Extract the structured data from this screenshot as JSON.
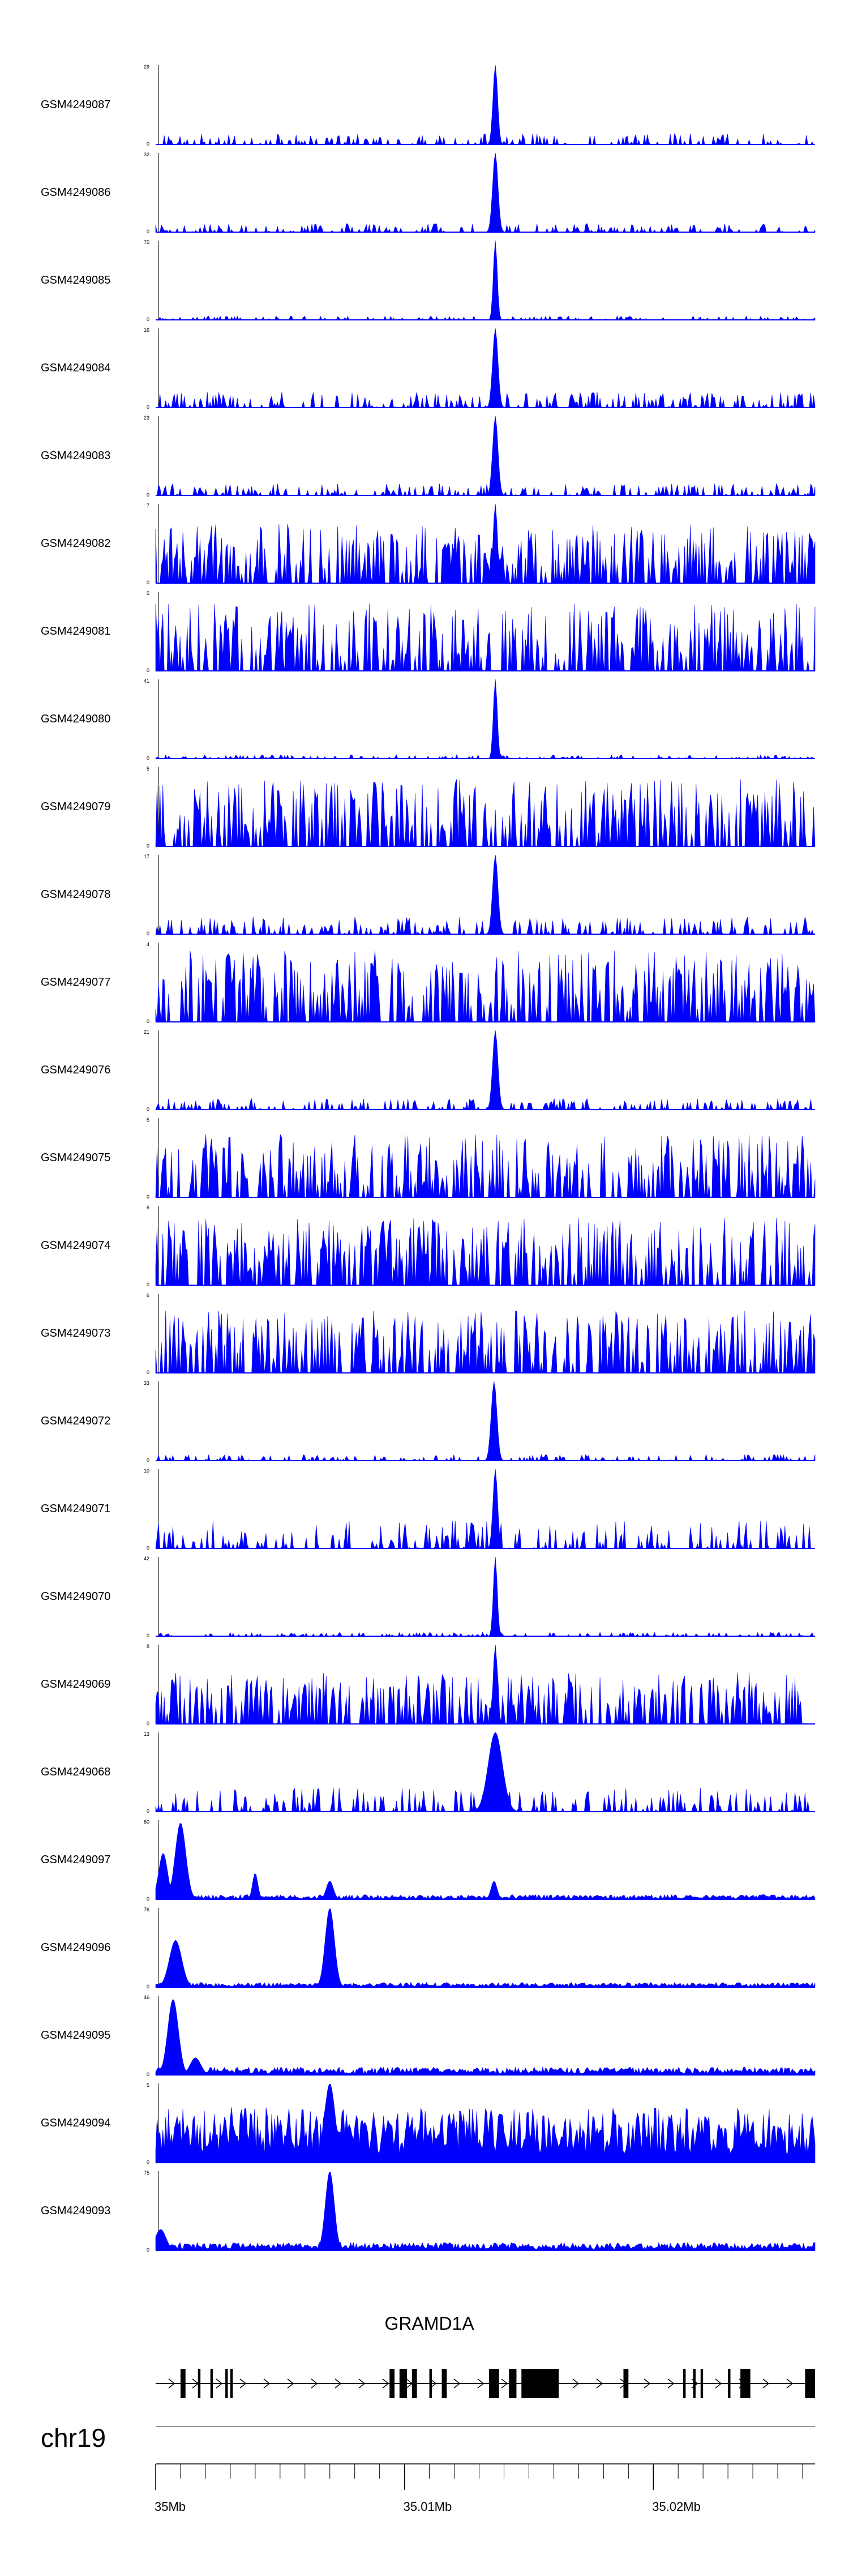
{
  "chart_data": {
    "type": "area",
    "color": "#0000ff",
    "genome": {
      "chromosome": "chr19",
      "ticks": [
        {
          "pos": 35000000,
          "label": "35Mb"
        },
        {
          "pos": 35010000,
          "label": "35.01Mb"
        },
        {
          "pos": 35020000,
          "label": "35.02Mb"
        }
      ],
      "xlim": [
        35000000,
        35026500
      ]
    },
    "gene": {
      "name": "GRAMD1A",
      "start": 35000000,
      "end": 35026500,
      "exons": [
        [
          35001000,
          35001200
        ],
        [
          35001700,
          35001800
        ],
        [
          35002200,
          35002300
        ],
        [
          35002800,
          35002900
        ],
        [
          35003000,
          35003100
        ],
        [
          35009400,
          35009600
        ],
        [
          35009800,
          35010100
        ],
        [
          35010300,
          35010500
        ],
        [
          35011000,
          35011100
        ],
        [
          35011500,
          35011700
        ],
        [
          35013400,
          35013800
        ],
        [
          35014200,
          35014500
        ],
        [
          35014700,
          35016200
        ],
        [
          35018800,
          35019000
        ],
        [
          35021200,
          35021300
        ],
        [
          35021600,
          35021700
        ],
        [
          35021900,
          35022000
        ],
        [
          35023000,
          35023100
        ],
        [
          35023500,
          35023900
        ],
        [
          35026100,
          35026500
        ]
      ]
    },
    "tracks": [
      {
        "name": "GSM4249087",
        "ymax": 29,
        "style": "peak",
        "peaks": [
          [
            35013650,
            29,
            130
          ]
        ],
        "noise": 0.14,
        "seed": 87
      },
      {
        "name": "GSM4249086",
        "ymax": 32,
        "style": "peak",
        "peaks": [
          [
            35013650,
            32,
            150
          ]
        ],
        "noise": 0.11,
        "seed": 86
      },
      {
        "name": "GSM4249085",
        "ymax": 75,
        "style": "peak",
        "peaks": [
          [
            35013650,
            75,
            110
          ]
        ],
        "noise": 0.05,
        "seed": 85
      },
      {
        "name": "GSM4249084",
        "ymax": 16,
        "style": "peak",
        "peaks": [
          [
            35013650,
            16,
            150
          ]
        ],
        "noise": 0.2,
        "seed": 84
      },
      {
        "name": "GSM4249083",
        "ymax": 23,
        "style": "peak",
        "peaks": [
          [
            35013650,
            23,
            150
          ]
        ],
        "noise": 0.15,
        "seed": 83
      },
      {
        "name": "GSM4249082",
        "ymax": 7,
        "style": "sparse",
        "peaks": [
          [
            35013650,
            7,
            120
          ]
        ],
        "noise": 0.75,
        "seed": 82
      },
      {
        "name": "GSM4249081",
        "ymax": 5,
        "style": "sparse",
        "peaks": [],
        "noise": 0.85,
        "seed": 81
      },
      {
        "name": "GSM4249080",
        "ymax": 41,
        "style": "peak",
        "peaks": [
          [
            35013650,
            41,
            110
          ]
        ],
        "noise": 0.05,
        "seed": 80
      },
      {
        "name": "GSM4249079",
        "ymax": 5,
        "style": "sparse",
        "peaks": [],
        "noise": 0.85,
        "seed": 79
      },
      {
        "name": "GSM4249078",
        "ymax": 17,
        "style": "peak",
        "peaks": [
          [
            35013650,
            17,
            150
          ]
        ],
        "noise": 0.22,
        "seed": 78
      },
      {
        "name": "GSM4249077",
        "ymax": 4,
        "style": "sparse",
        "peaks": [],
        "noise": 0.9,
        "seed": 77
      },
      {
        "name": "GSM4249076",
        "ymax": 21,
        "style": "peak",
        "peaks": [
          [
            35013650,
            21,
            150
          ]
        ],
        "noise": 0.14,
        "seed": 76
      },
      {
        "name": "GSM4249075",
        "ymax": 5,
        "style": "sparse",
        "peaks": [],
        "noise": 0.8,
        "seed": 75
      },
      {
        "name": "GSM4249074",
        "ymax": 6,
        "style": "sparse",
        "peaks": [],
        "noise": 0.85,
        "seed": 74
      },
      {
        "name": "GSM4249073",
        "ymax": 6,
        "style": "sparse",
        "peaks": [],
        "noise": 0.8,
        "seed": 73
      },
      {
        "name": "GSM4249072",
        "ymax": 33,
        "style": "peak",
        "peaks": [
          [
            35013600,
            33,
            160
          ]
        ],
        "noise": 0.08,
        "seed": 72
      },
      {
        "name": "GSM4249071",
        "ymax": 10,
        "style": "peak",
        "peaks": [
          [
            35013650,
            10,
            130
          ]
        ],
        "noise": 0.35,
        "seed": 71
      },
      {
        "name": "GSM4249070",
        "ymax": 42,
        "style": "peak",
        "peaks": [
          [
            35013650,
            42,
            110
          ]
        ],
        "noise": 0.05,
        "seed": 70
      },
      {
        "name": "GSM4249069",
        "ymax": 8,
        "style": "sparse",
        "peaks": [
          [
            35013650,
            8,
            120
          ]
        ],
        "noise": 0.65,
        "seed": 69
      },
      {
        "name": "GSM4249068",
        "ymax": 13,
        "style": "peak",
        "peaks": [
          [
            35013650,
            13,
            400
          ]
        ],
        "noise": 0.3,
        "seed": 68
      },
      {
        "name": "GSM4249097",
        "ymax": 60,
        "style": "dense",
        "peaks": [
          [
            35000300,
            35,
            250
          ],
          [
            35001000,
            58,
            300
          ],
          [
            35004000,
            20,
            150
          ],
          [
            35007000,
            14,
            200
          ],
          [
            35013600,
            14,
            170
          ]
        ],
        "noise": 0.03,
        "seed": 97
      },
      {
        "name": "GSM4249096",
        "ymax": 76,
        "style": "dense",
        "peaks": [
          [
            35000800,
            45,
            350
          ],
          [
            35007000,
            76,
            260
          ]
        ],
        "noise": 0.03,
        "seed": 96
      },
      {
        "name": "GSM4249095",
        "ymax": 46,
        "style": "dense",
        "peaks": [
          [
            35000700,
            44,
            300
          ],
          [
            35001600,
            10,
            300
          ]
        ],
        "noise": 0.05,
        "seed": 95
      },
      {
        "name": "GSM4249094",
        "ymax": 5,
        "style": "dense",
        "peaks": [
          [
            35007000,
            5,
            300
          ]
        ],
        "noise": 0.35,
        "seed": 94
      },
      {
        "name": "GSM4249093",
        "ymax": 75,
        "style": "dense",
        "peaks": [
          [
            35000200,
            20,
            300
          ],
          [
            35007000,
            75,
            250
          ]
        ],
        "noise": 0.05,
        "seed": 93
      }
    ]
  }
}
